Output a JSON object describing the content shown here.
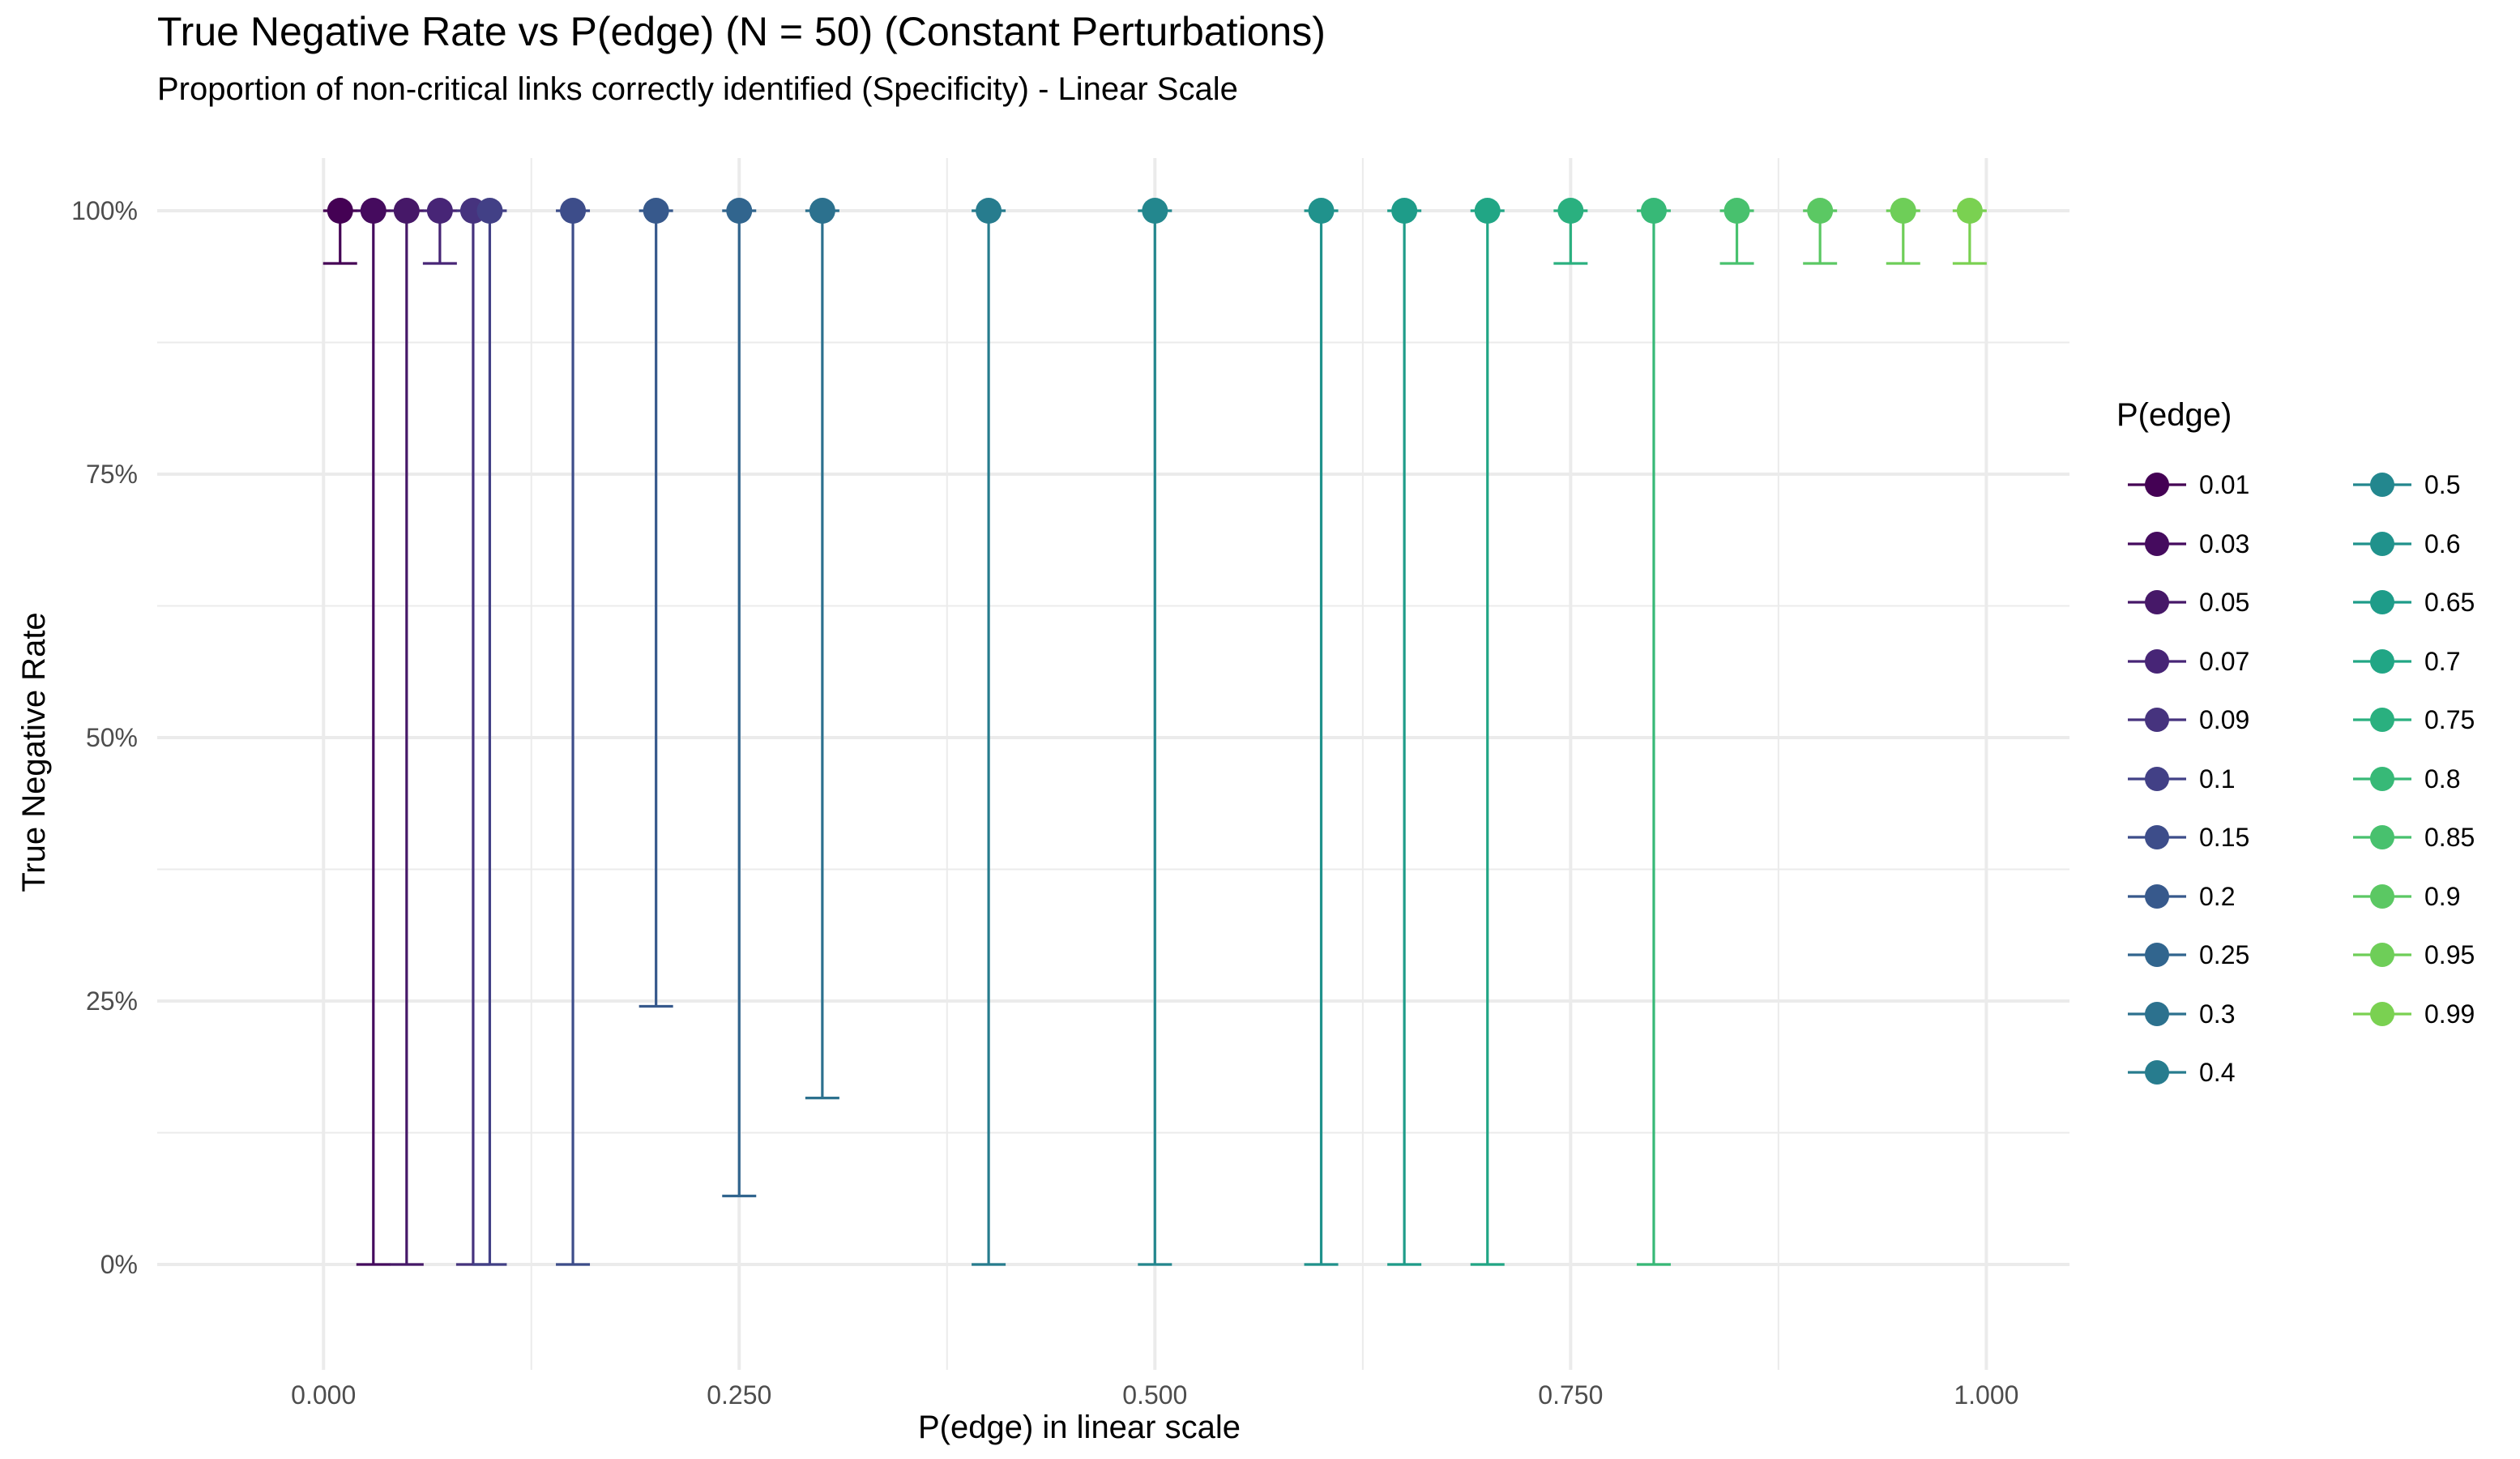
{
  "chart_data": {
    "type": "scatter",
    "title": "True Negative Rate vs P(edge) (N = 50) (Constant Perturbations)",
    "subtitle": "Proportion of non-critical links correctly identified (Specificity) - Linear Scale",
    "xlabel": "P(edge) in linear scale",
    "ylabel": "True Negative Rate",
    "xlim": [
      -0.1,
      1.05
    ],
    "ylim": [
      -0.1,
      1.05
    ],
    "x_ticks": [
      0.0,
      0.25,
      0.5,
      0.75,
      1.0
    ],
    "x_tick_labels": [
      "0.000",
      "0.250",
      "0.500",
      "0.750",
      "1.000"
    ],
    "y_ticks": [
      0,
      0.25,
      0.5,
      0.75,
      1.0
    ],
    "y_tick_labels": [
      "0%",
      "25%",
      "50%",
      "75%",
      "100%"
    ],
    "grid": true,
    "legend": {
      "title": "P(edge)",
      "placement": "right",
      "columns": 2
    },
    "points": [
      {
        "label": "0.01",
        "x": 0.01,
        "y": 1.0,
        "ymin": 0.95,
        "ymax": 1.0,
        "color": "#440154"
      },
      {
        "label": "0.03",
        "x": 0.03,
        "y": 1.0,
        "ymin": 0.0,
        "ymax": 1.0,
        "color": "#450B5E"
      },
      {
        "label": "0.05",
        "x": 0.05,
        "y": 1.0,
        "ymin": 0.0,
        "ymax": 1.0,
        "color": "#461868"
      },
      {
        "label": "0.07",
        "x": 0.07,
        "y": 1.0,
        "ymin": 0.95,
        "ymax": 1.0,
        "color": "#472576"
      },
      {
        "label": "0.09",
        "x": 0.09,
        "y": 1.0,
        "ymin": 0.0,
        "ymax": 1.0,
        "color": "#46337E"
      },
      {
        "label": "0.1",
        "x": 0.1,
        "y": 1.0,
        "ymin": 0.0,
        "ymax": 1.0,
        "color": "#424086"
      },
      {
        "label": "0.15",
        "x": 0.15,
        "y": 1.0,
        "ymin": 0.0,
        "ymax": 1.0,
        "color": "#3D4D8A"
      },
      {
        "label": "0.2",
        "x": 0.2,
        "y": 1.0,
        "ymin": 0.245,
        "ymax": 1.0,
        "color": "#37598C"
      },
      {
        "label": "0.25",
        "x": 0.25,
        "y": 1.0,
        "ymin": 0.065,
        "ymax": 1.0,
        "color": "#31658E"
      },
      {
        "label": "0.3",
        "x": 0.3,
        "y": 1.0,
        "ymin": 0.158,
        "ymax": 1.0,
        "color": "#2C718E"
      },
      {
        "label": "0.4",
        "x": 0.4,
        "y": 1.0,
        "ymin": 0.0,
        "ymax": 1.0,
        "color": "#277C8E"
      },
      {
        "label": "0.5",
        "x": 0.5,
        "y": 1.0,
        "ymin": 0.0,
        "ymax": 1.0,
        "color": "#23878E"
      },
      {
        "label": "0.6",
        "x": 0.6,
        "y": 1.0,
        "ymin": 0.0,
        "ymax": 1.0,
        "color": "#20928C"
      },
      {
        "label": "0.65",
        "x": 0.65,
        "y": 1.0,
        "ymin": 0.0,
        "ymax": 1.0,
        "color": "#1E9C89"
      },
      {
        "label": "0.7",
        "x": 0.7,
        "y": 1.0,
        "ymin": 0.0,
        "ymax": 1.0,
        "color": "#21A685"
      },
      {
        "label": "0.75",
        "x": 0.75,
        "y": 1.0,
        "ymin": 0.95,
        "ymax": 1.0,
        "color": "#2AB07F"
      },
      {
        "label": "0.8",
        "x": 0.8,
        "y": 1.0,
        "ymin": 0.0,
        "ymax": 1.0,
        "color": "#37B977"
      },
      {
        "label": "0.85",
        "x": 0.85,
        "y": 1.0,
        "ymin": 0.95,
        "ymax": 1.0,
        "color": "#48C16E"
      },
      {
        "label": "0.9",
        "x": 0.9,
        "y": 1.0,
        "ymin": 0.95,
        "ymax": 1.0,
        "color": "#5BC863"
      },
      {
        "label": "0.95",
        "x": 0.95,
        "y": 1.0,
        "ymin": 0.95,
        "ymax": 1.0,
        "color": "#6ECE58"
      },
      {
        "label": "0.99",
        "x": 0.99,
        "y": 1.0,
        "ymin": 0.95,
        "ymax": 1.0,
        "color": "#7AD151"
      }
    ]
  }
}
